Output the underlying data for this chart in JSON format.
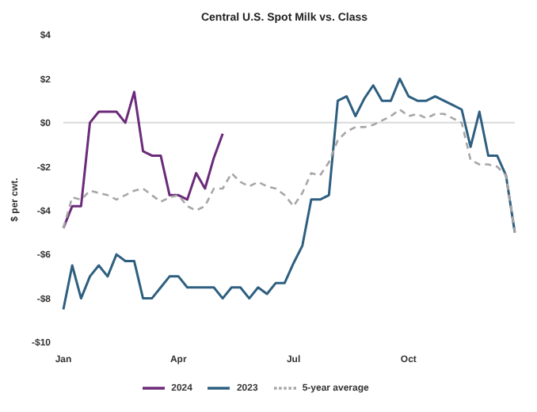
{
  "chart_data": {
    "type": "line",
    "title": "Central U.S. Spot Milk vs. Class",
    "ylabel": "$ per cwt.",
    "categories": [
      "Jan",
      null,
      null,
      null,
      null,
      null,
      null,
      null,
      null,
      null,
      null,
      null,
      null,
      "Apr",
      null,
      null,
      null,
      null,
      null,
      null,
      null,
      null,
      null,
      null,
      null,
      null,
      "Jul",
      null,
      null,
      null,
      null,
      null,
      null,
      null,
      null,
      null,
      null,
      null,
      null,
      "Oct",
      null,
      null,
      null,
      null,
      null,
      null,
      null,
      null,
      null,
      null,
      null,
      null
    ],
    "ylim": [
      -10,
      4
    ],
    "yticks": [
      {
        "value": -10,
        "label": "-$10"
      },
      {
        "value": -8,
        "label": "-$8"
      },
      {
        "value": -6,
        "label": "-$6"
      },
      {
        "value": -4,
        "label": "-$4"
      },
      {
        "value": -2,
        "label": "-$2"
      },
      {
        "value": 0,
        "label": "$0"
      },
      {
        "value": 2,
        "label": "$2"
      },
      {
        "value": 4,
        "label": "$4"
      }
    ],
    "series": [
      {
        "name": "2024",
        "color": "#6b2a7a",
        "line_style": "solid",
        "values": [
          -4.8,
          -3.8,
          -3.8,
          0,
          0.5,
          0.5,
          0.5,
          0,
          1.4,
          -1.3,
          -1.5,
          -1.5,
          -3.3,
          -3.3,
          -3.5,
          -2.3,
          -3,
          -1.6,
          -0.5,
          null,
          null,
          null,
          null,
          null,
          null,
          null,
          null,
          null,
          null,
          null,
          null,
          null,
          null,
          null,
          null,
          null,
          null,
          null,
          null,
          null,
          null,
          null,
          null,
          null,
          null,
          null,
          null,
          null,
          null,
          null,
          null,
          null
        ]
      },
      {
        "name": "2023",
        "color": "#2e5f80",
        "line_style": "solid",
        "values": [
          -8.5,
          -6.5,
          -8,
          -7,
          -6.5,
          -7,
          -6,
          -6.3,
          -6.3,
          -8,
          -8,
          -7.5,
          -7,
          -7,
          -7.5,
          -7.5,
          -7.5,
          -7.5,
          -8,
          -7.5,
          -7.5,
          -8,
          -7.5,
          -7.8,
          -7.3,
          -7.3,
          -6.4,
          -5.6,
          -3.5,
          -3.5,
          -3.3,
          1,
          1.2,
          0.3,
          1.1,
          1.7,
          1,
          1,
          2,
          1.2,
          1,
          1,
          1.2,
          1,
          0.8,
          0.6,
          -1.1,
          0.5,
          -1.5,
          -1.5,
          -2.4,
          -5
        ]
      },
      {
        "name": "5-year average",
        "color": "#a6a6a6",
        "line_style": "dashed",
        "values": [
          -4.8,
          -3.4,
          -3.5,
          -3.1,
          -3.2,
          -3.3,
          -3.5,
          -3.3,
          -3.1,
          -3,
          -3.3,
          -3.6,
          -3.4,
          -3.3,
          -3.8,
          -4,
          -3.8,
          -3,
          -3,
          -2.3,
          -2.7,
          -2.9,
          -2.7,
          -2.9,
          -3,
          -3.3,
          -3.8,
          -3.2,
          -2.3,
          -2.4,
          -1.8,
          -0.8,
          -0.4,
          -0.2,
          -0.2,
          -0.1,
          0.1,
          0.3,
          0.6,
          0.3,
          0.4,
          0.2,
          0.4,
          0.4,
          0.2,
          0,
          -1.7,
          -1.9,
          -1.9,
          -2,
          -2.4,
          -5
        ]
      }
    ],
    "ref_lines": [
      {
        "axis": "y",
        "value": 0,
        "color": "#d9d9d9"
      }
    ],
    "grid": false,
    "legend": "bottom",
    "marker": "none"
  }
}
